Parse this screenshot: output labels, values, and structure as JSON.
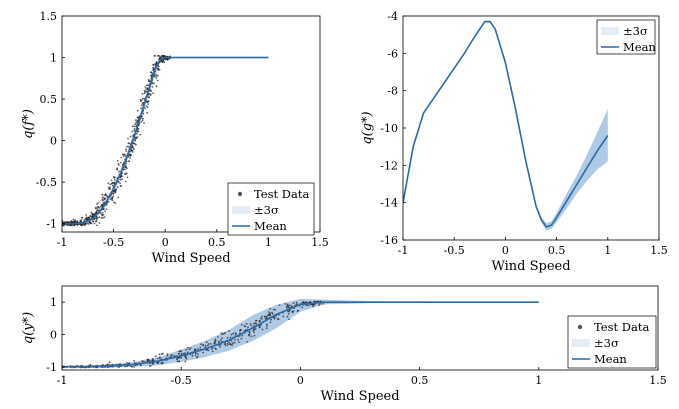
{
  "colors": {
    "mean": "#2c6aa6",
    "band": "#6d9fd0",
    "test_data": "#222222",
    "axes": "#000000"
  },
  "chart_data": [
    {
      "id": "top_left",
      "type": "scatter",
      "xlabel": "Wind Speed",
      "ylabel": "q(f*)",
      "xlim": [
        -1,
        1.5
      ],
      "ylim": [
        -1.1,
        1.5
      ],
      "xticks": [
        "-1",
        "-0.5",
        "0",
        "0.5",
        "1",
        "1.5"
      ],
      "yticks": [
        "-1",
        "-0.5",
        "0",
        "0.5",
        "1",
        "1.5"
      ],
      "legend": {
        "position": "bottom-right",
        "entries": [
          "Test Data",
          "±3σ",
          "Mean"
        ]
      },
      "series": [
        {
          "name": "Mean",
          "kind": "line",
          "x": [
            -1.0,
            -0.9,
            -0.8,
            -0.7,
            -0.6,
            -0.5,
            -0.4,
            -0.3,
            -0.2,
            -0.1,
            -0.05,
            0.0,
            0.2,
            0.5,
            1.0
          ],
          "y": [
            -1.0,
            -1.0,
            -0.99,
            -0.94,
            -0.8,
            -0.58,
            -0.3,
            0.05,
            0.45,
            0.85,
            0.97,
            1.0,
            1.0,
            1.0,
            1.0
          ]
        },
        {
          "name": "±3σ",
          "kind": "band",
          "x": [
            -1.0,
            -0.9,
            -0.8,
            -0.7,
            -0.6,
            -0.5,
            -0.4,
            -0.3,
            -0.2,
            -0.1,
            -0.05,
            0.0,
            0.2,
            0.5,
            1.0
          ],
          "lower": [
            -1.01,
            -1.01,
            -1.0,
            -0.96,
            -0.83,
            -0.62,
            -0.35,
            0.0,
            0.4,
            0.8,
            0.95,
            0.99,
            0.99,
            0.99,
            0.99
          ],
          "upper": [
            -0.99,
            -0.99,
            -0.98,
            -0.92,
            -0.77,
            -0.54,
            -0.25,
            0.1,
            0.5,
            0.9,
            0.99,
            1.01,
            1.01,
            1.01,
            1.01
          ]
        },
        {
          "name": "Test Data",
          "kind": "scatter",
          "count": 700,
          "x_range": [
            -1.0,
            0.05
          ],
          "spread": 0.09
        }
      ]
    },
    {
      "id": "top_right",
      "type": "line",
      "xlabel": "Wind Speed",
      "ylabel": "q(g*)",
      "xlim": [
        -1,
        1.5
      ],
      "ylim": [
        -16,
        -4
      ],
      "xticks": [
        "-1",
        "-0.5",
        "0",
        "0.5",
        "1",
        "1.5"
      ],
      "yticks": [
        "-16",
        "-14",
        "-12",
        "-10",
        "-8",
        "-6",
        "-4"
      ],
      "legend": {
        "position": "top-right",
        "entries": [
          "±3σ",
          "Mean"
        ]
      },
      "series": [
        {
          "name": "Mean",
          "kind": "line",
          "x": [
            -1.0,
            -0.9,
            -0.8,
            -0.6,
            -0.4,
            -0.3,
            -0.2,
            -0.15,
            -0.1,
            0.0,
            0.1,
            0.2,
            0.3,
            0.35,
            0.4,
            0.45,
            0.5,
            0.6,
            0.7,
            0.8,
            0.9,
            1.0
          ],
          "y": [
            -14.0,
            -11.0,
            -9.2,
            -7.6,
            -6.0,
            -5.1,
            -4.3,
            -4.3,
            -4.7,
            -6.5,
            -9.0,
            -11.8,
            -14.2,
            -14.9,
            -15.3,
            -15.2,
            -14.8,
            -13.9,
            -13.0,
            -12.1,
            -11.2,
            -10.4
          ]
        },
        {
          "name": "±3σ",
          "kind": "band",
          "x": [
            -1.0,
            -0.9,
            -0.8,
            -0.6,
            -0.4,
            -0.3,
            -0.2,
            -0.15,
            -0.1,
            0.0,
            0.1,
            0.2,
            0.3,
            0.35,
            0.4,
            0.45,
            0.5,
            0.6,
            0.7,
            0.8,
            0.9,
            1.0
          ],
          "lower": [
            -14.05,
            -11.05,
            -9.25,
            -7.65,
            -6.05,
            -5.15,
            -4.35,
            -4.35,
            -4.75,
            -6.55,
            -9.05,
            -11.85,
            -14.3,
            -15.05,
            -15.5,
            -15.4,
            -15.05,
            -14.3,
            -13.5,
            -12.8,
            -12.2,
            -11.8
          ],
          "upper": [
            -13.95,
            -10.95,
            -9.15,
            -7.55,
            -5.95,
            -5.05,
            -4.25,
            -4.25,
            -4.65,
            -6.45,
            -8.95,
            -11.75,
            -14.1,
            -14.75,
            -15.1,
            -15.0,
            -14.55,
            -13.5,
            -12.5,
            -11.4,
            -10.2,
            -9.0
          ]
        }
      ]
    },
    {
      "id": "bottom",
      "type": "scatter",
      "xlabel": "Wind Speed",
      "ylabel": "q(y*)",
      "xlim": [
        -1,
        1.5
      ],
      "ylim": [
        -1.1,
        1.5
      ],
      "xticks": [
        "-1",
        "-0.5",
        "0",
        "0.5",
        "1",
        "1.5"
      ],
      "yticks": [
        "-1",
        "0",
        "1"
      ],
      "legend": {
        "position": "bottom-right",
        "entries": [
          "Test Data",
          "±3σ",
          "Mean"
        ]
      },
      "series": [
        {
          "name": "Mean",
          "kind": "line",
          "x": [
            -1.0,
            -0.9,
            -0.8,
            -0.7,
            -0.6,
            -0.5,
            -0.4,
            -0.3,
            -0.2,
            -0.1,
            0.0,
            0.1,
            0.3,
            0.6,
            1.0
          ],
          "y": [
            -1.0,
            -1.0,
            -0.98,
            -0.93,
            -0.83,
            -0.66,
            -0.45,
            -0.18,
            0.2,
            0.62,
            0.93,
            1.0,
            1.0,
            1.0,
            1.0
          ]
        },
        {
          "name": "±3σ",
          "kind": "band",
          "x": [
            -1.0,
            -0.9,
            -0.8,
            -0.7,
            -0.6,
            -0.5,
            -0.4,
            -0.3,
            -0.2,
            -0.1,
            0.0,
            0.1,
            0.3,
            0.6,
            1.0
          ],
          "lower": [
            -1.02,
            -1.03,
            -1.03,
            -1.0,
            -0.95,
            -0.85,
            -0.7,
            -0.5,
            -0.2,
            0.2,
            0.7,
            0.93,
            0.97,
            0.98,
            0.98
          ],
          "upper": [
            -0.98,
            -0.96,
            -0.92,
            -0.85,
            -0.71,
            -0.47,
            -0.2,
            0.14,
            0.6,
            0.92,
            1.1,
            1.08,
            1.03,
            1.02,
            1.02
          ]
        },
        {
          "name": "Test Data",
          "kind": "scatter",
          "count": 500,
          "x_range": [
            -1.0,
            0.1
          ],
          "spread": 0.12
        }
      ]
    }
  ]
}
